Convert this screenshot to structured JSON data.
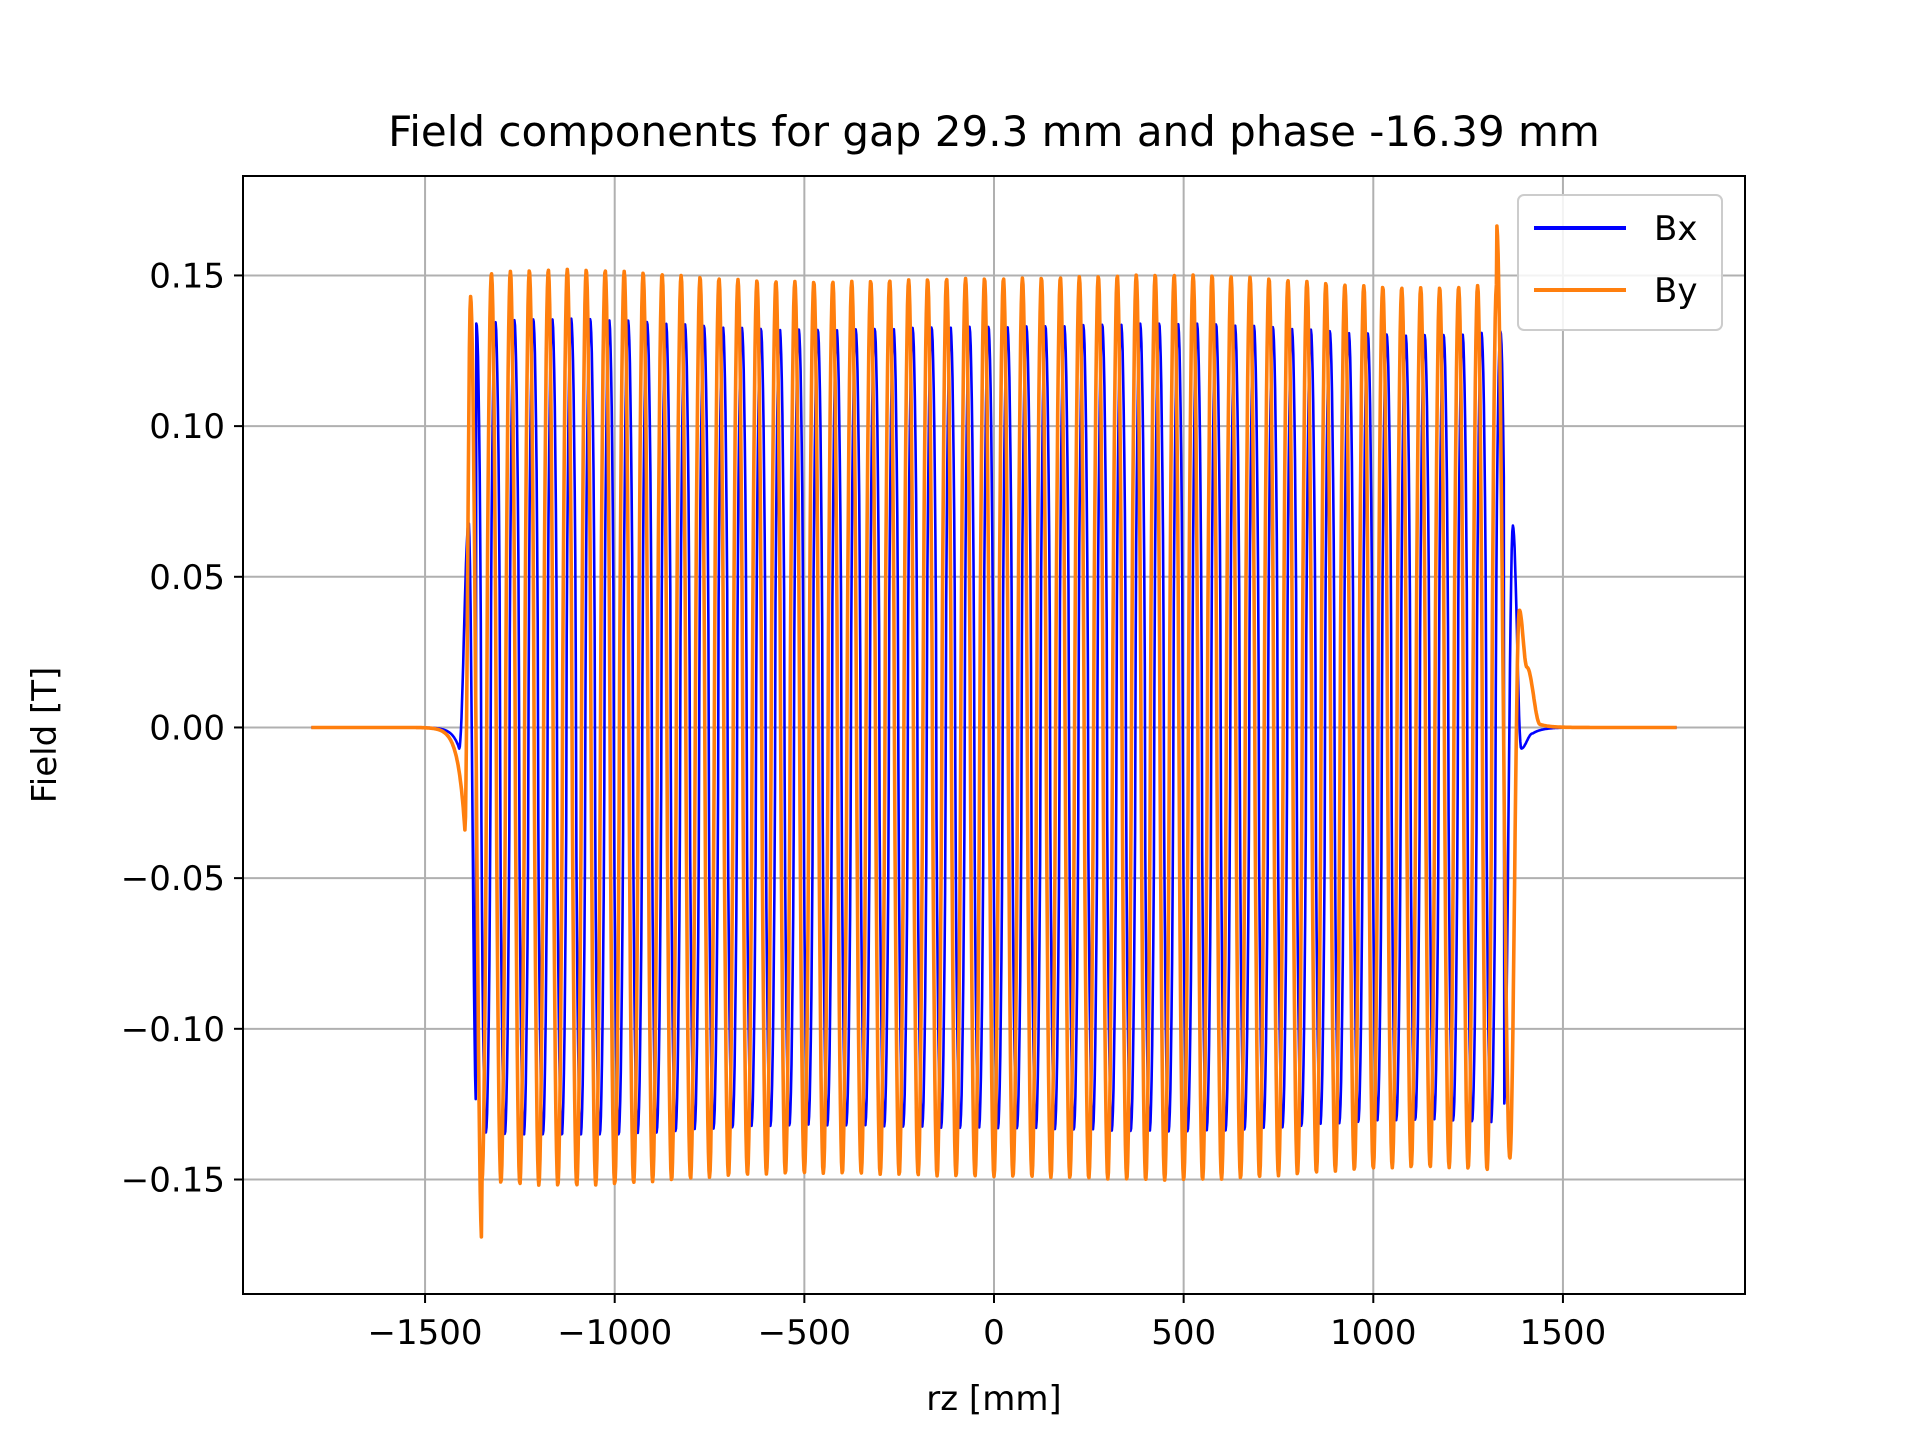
{
  "chart_data": {
    "type": "line",
    "title": "Field components for gap 29.3 mm and phase -16.39 mm",
    "xlabel": "rz [mm]",
    "ylabel": "Field [T]",
    "xlim": [
      -1980,
      1980
    ],
    "ylim": [
      -0.188,
      0.183
    ],
    "grid": true,
    "legend_position": "top-right",
    "xticks": [
      -1500,
      -1000,
      -500,
      0,
      500,
      1000,
      1500
    ],
    "xtick_labels": [
      "−1500",
      "−1000",
      "−500",
      "0",
      "500",
      "1000",
      "1500"
    ],
    "yticks": [
      -0.15,
      -0.1,
      -0.05,
      0.0,
      0.05,
      0.1,
      0.15
    ],
    "ytick_labels": [
      "−0.15",
      "−0.10",
      "−0.05",
      "0.00",
      "0.05",
      "0.10",
      "0.15"
    ],
    "x_range": [
      -1800,
      1800
    ],
    "core_range": [
      -1370,
      1330
    ],
    "period_mm": 50,
    "series": [
      {
        "name": "Bx",
        "color": "#0000ff",
        "amplitude": 0.133,
        "peak_max": 0.137,
        "peak_min": -0.135,
        "entry_features": [
          [
            -1410,
            -0.007
          ],
          [
            -1385,
            0.068
          ],
          [
            -1365,
            -0.126
          ]
        ],
        "exit_features": [
          [
            1345,
            -0.125
          ],
          [
            1368,
            0.067
          ],
          [
            1390,
            -0.007
          ],
          [
            1420,
            -0.002
          ]
        ]
      },
      {
        "name": "By",
        "color": "#ff7f0e",
        "amplitude": 0.149,
        "peak_max": 0.167,
        "peak_min": -0.171,
        "entry_features": [
          [
            -1395,
            -0.034
          ],
          [
            -1380,
            0.143
          ],
          [
            -1350,
            -0.171
          ]
        ],
        "exit_features": [
          [
            1325,
            0.167
          ],
          [
            1360,
            -0.143
          ],
          [
            1385,
            0.039
          ],
          [
            1405,
            0.02
          ],
          [
            1440,
            0.001
          ]
        ]
      }
    ]
  }
}
